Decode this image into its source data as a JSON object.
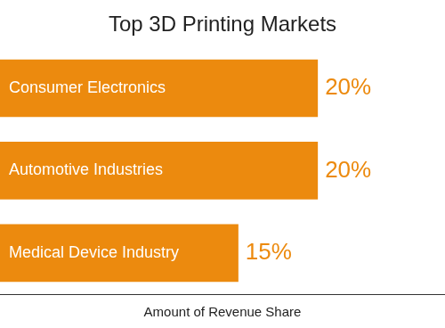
{
  "chart_data": {
    "type": "bar",
    "title": "Top 3D Printing Markets",
    "orientation": "horizontal",
    "categories": [
      "Consumer Electronics",
      "Automotive Industries",
      "Medical Device Industry"
    ],
    "values": [
      20,
      20,
      15
    ],
    "value_labels": [
      "20%",
      "20%",
      "15%"
    ],
    "data_labels": true,
    "color": "#ec8a0e",
    "x_label": "Amount of Revenue Share",
    "xlim": [
      0,
      28
    ],
    "grid": false,
    "tick_labels": false
  }
}
